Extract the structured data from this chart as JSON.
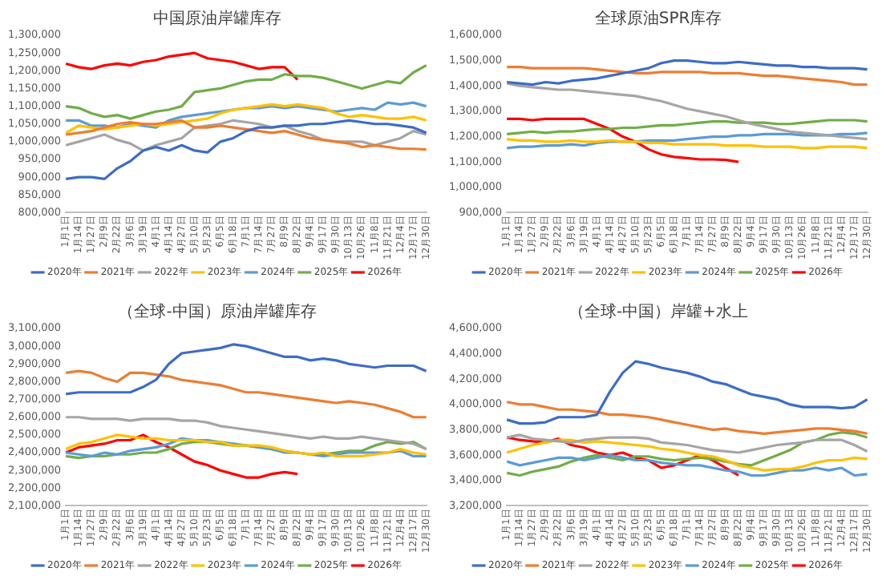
{
  "chart_data": [
    {
      "type": "line",
      "title": "中国原油岸罐库存",
      "categories": [
        "1月1日",
        "1月14日",
        "1月27日",
        "2月9日",
        "2月22日",
        "3月6日",
        "3月19日",
        "4月1日",
        "4月14日",
        "4月27日",
        "5月10日",
        "5月23日",
        "6月5日",
        "6月18日",
        "7月1日",
        "7月14日",
        "7月27日",
        "8月9日",
        "8月22日",
        "9月4日",
        "9月17日",
        "9月30日",
        "10月13日",
        "10月26日",
        "11月8日",
        "11月21日",
        "12月4日",
        "12月17日",
        "12月30日"
      ],
      "ylim": [
        800000,
        1300000
      ],
      "yticks": [
        {
          "value": 800000,
          "label": "800,000"
        },
        {
          "value": 850000,
          "label": "850,000"
        },
        {
          "value": 900000,
          "label": "900,000"
        },
        {
          "value": 950000,
          "label": "950,000"
        },
        {
          "value": 1000000,
          "label": "1,000,000"
        },
        {
          "value": 1050000,
          "label": "1,050,000"
        },
        {
          "value": 1100000,
          "label": "1,100,000"
        },
        {
          "value": 1150000,
          "label": "1,150,000"
        },
        {
          "value": 1200000,
          "label": "1,200,000"
        },
        {
          "value": 1250000,
          "label": "1,250,000"
        },
        {
          "value": 1300000,
          "label": "1,300,000"
        }
      ],
      "legend": "bottom",
      "marker": "none",
      "series": [
        {
          "name": "2020年",
          "color": "#3d6cc8",
          "values": [
            895000,
            900000,
            900000,
            895000,
            925000,
            945000,
            975000,
            985000,
            975000,
            990000,
            975000,
            970000,
            1000000,
            1010000,
            1030000,
            1040000,
            1040000,
            1045000,
            1045000,
            1050000,
            1050000,
            1055000,
            1060000,
            1055000,
            1050000,
            1050000,
            1045000,
            1040000,
            1025000
          ]
        },
        {
          "name": "2021年",
          "color": "#ed7d31",
          "values": [
            1020000,
            1025000,
            1030000,
            1040000,
            1050000,
            1055000,
            1050000,
            1050000,
            1055000,
            1060000,
            1040000,
            1040000,
            1045000,
            1040000,
            1035000,
            1030000,
            1025000,
            1030000,
            1020000,
            1010000,
            1005000,
            1000000,
            995000,
            985000,
            990000,
            985000,
            980000,
            980000,
            978000
          ]
        },
        {
          "name": "2022年",
          "color": "#a5a5a5",
          "values": [
            990000,
            1000000,
            1010000,
            1020000,
            1005000,
            995000,
            975000,
            990000,
            1000000,
            1010000,
            1040000,
            1045000,
            1050000,
            1060000,
            1055000,
            1050000,
            1040000,
            1045000,
            1030000,
            1020000,
            1005000,
            1000000,
            1000000,
            1000000,
            990000,
            1000000,
            1010000,
            1030000,
            1020000
          ]
        },
        {
          "name": "2023年",
          "color": "#ffc000",
          "values": [
            1025000,
            1045000,
            1040000,
            1035000,
            1040000,
            1045000,
            1050000,
            1045000,
            1050000,
            1055000,
            1060000,
            1065000,
            1080000,
            1090000,
            1095000,
            1100000,
            1105000,
            1100000,
            1105000,
            1100000,
            1095000,
            1080000,
            1070000,
            1075000,
            1070000,
            1065000,
            1065000,
            1070000,
            1060000
          ]
        },
        {
          "name": "2024年",
          "color": "#5b9bd5",
          "values": [
            1060000,
            1060000,
            1045000,
            1045000,
            1040000,
            1050000,
            1045000,
            1040000,
            1060000,
            1070000,
            1075000,
            1080000,
            1085000,
            1090000,
            1095000,
            1095000,
            1100000,
            1095000,
            1100000,
            1095000,
            1090000,
            1085000,
            1090000,
            1095000,
            1090000,
            1110000,
            1105000,
            1110000,
            1100000
          ]
        },
        {
          "name": "2025年",
          "color": "#70ad47",
          "values": [
            1100000,
            1095000,
            1080000,
            1070000,
            1075000,
            1065000,
            1075000,
            1085000,
            1090000,
            1100000,
            1140000,
            1145000,
            1150000,
            1160000,
            1170000,
            1175000,
            1175000,
            1190000,
            1185000,
            1185000,
            1180000,
            1170000,
            1160000,
            1150000,
            1160000,
            1170000,
            1165000,
            1195000,
            1215000
          ]
        },
        {
          "name": "2026年",
          "color": "#ff0000",
          "values": [
            1220000,
            1210000,
            1205000,
            1215000,
            1220000,
            1215000,
            1225000,
            1230000,
            1240000,
            1245000,
            1250000,
            1235000,
            1230000,
            1225000,
            1215000,
            1205000,
            1210000,
            1210000,
            1175000,
            null,
            null,
            null,
            null,
            null,
            null,
            null,
            null,
            null,
            null
          ]
        }
      ]
    },
    {
      "type": "line",
      "title": "全球原油SPR库存",
      "categories": [
        "1月1日",
        "1月14日",
        "1月27日",
        "2月9日",
        "2月22日",
        "3月6日",
        "3月19日",
        "4月1日",
        "4月14日",
        "4月27日",
        "5月10日",
        "5月23日",
        "6月5日",
        "6月18日",
        "7月1日",
        "7月14日",
        "7月27日",
        "8月9日",
        "8月22日",
        "9月4日",
        "9月17日",
        "9月30日",
        "10月13日",
        "10月26日",
        "11月8日",
        "11月21日",
        "12月4日",
        "12月17日",
        "12月30日"
      ],
      "ylim": [
        900000,
        1600000
      ],
      "yticks": [
        {
          "value": 900000,
          "label": "900,000"
        },
        {
          "value": 1000000,
          "label": "1,000,000"
        },
        {
          "value": 1100000,
          "label": "1,100,000"
        },
        {
          "value": 1200000,
          "label": "1,200,000"
        },
        {
          "value": 1300000,
          "label": "1,300,000"
        },
        {
          "value": 1400000,
          "label": "1,400,000"
        },
        {
          "value": 1500000,
          "label": "1,500,000"
        },
        {
          "value": 1600000,
          "label": "1,600,000"
        }
      ],
      "legend": "bottom",
      "marker": "none",
      "series": [
        {
          "name": "2020年",
          "color": "#3d6cc8",
          "values": [
            1415000,
            1410000,
            1405000,
            1415000,
            1410000,
            1420000,
            1425000,
            1430000,
            1440000,
            1450000,
            1460000,
            1470000,
            1490000,
            1500000,
            1500000,
            1495000,
            1490000,
            1490000,
            1495000,
            1490000,
            1485000,
            1480000,
            1480000,
            1475000,
            1475000,
            1470000,
            1470000,
            1470000,
            1465000
          ]
        },
        {
          "name": "2021年",
          "color": "#ed7d31",
          "values": [
            1475000,
            1475000,
            1470000,
            1470000,
            1470000,
            1470000,
            1470000,
            1465000,
            1460000,
            1455000,
            1450000,
            1450000,
            1455000,
            1455000,
            1455000,
            1455000,
            1450000,
            1450000,
            1450000,
            1445000,
            1440000,
            1440000,
            1435000,
            1430000,
            1425000,
            1420000,
            1415000,
            1405000,
            1405000
          ]
        },
        {
          "name": "2022年",
          "color": "#a5a5a5",
          "values": [
            1410000,
            1400000,
            1395000,
            1390000,
            1385000,
            1385000,
            1380000,
            1375000,
            1370000,
            1365000,
            1360000,
            1350000,
            1340000,
            1325000,
            1310000,
            1300000,
            1290000,
            1280000,
            1265000,
            1250000,
            1240000,
            1230000,
            1220000,
            1215000,
            1210000,
            1205000,
            1200000,
            1195000,
            1190000
          ]
        },
        {
          "name": "2023年",
          "color": "#ffc000",
          "values": [
            1190000,
            1185000,
            1185000,
            1180000,
            1180000,
            1185000,
            1180000,
            1180000,
            1185000,
            1180000,
            1180000,
            1175000,
            1175000,
            1170000,
            1170000,
            1170000,
            1170000,
            1165000,
            1165000,
            1165000,
            1160000,
            1160000,
            1160000,
            1155000,
            1155000,
            1160000,
            1160000,
            1160000,
            1155000
          ]
        },
        {
          "name": "2024年",
          "color": "#5b9bd5",
          "values": [
            1155000,
            1160000,
            1160000,
            1165000,
            1165000,
            1170000,
            1165000,
            1175000,
            1180000,
            1180000,
            1180000,
            1185000,
            1185000,
            1185000,
            1190000,
            1195000,
            1200000,
            1200000,
            1205000,
            1205000,
            1210000,
            1210000,
            1210000,
            1205000,
            1205000,
            1205000,
            1210000,
            1210000,
            1215000
          ]
        },
        {
          "name": "2025年",
          "color": "#70ad47",
          "values": [
            1210000,
            1215000,
            1220000,
            1215000,
            1220000,
            1220000,
            1225000,
            1230000,
            1230000,
            1235000,
            1235000,
            1240000,
            1245000,
            1245000,
            1250000,
            1255000,
            1260000,
            1260000,
            1255000,
            1255000,
            1255000,
            1250000,
            1250000,
            1255000,
            1260000,
            1265000,
            1265000,
            1265000,
            1260000
          ]
        },
        {
          "name": "2026年",
          "color": "#ff0000",
          "values": [
            1270000,
            1270000,
            1265000,
            1270000,
            1270000,
            1270000,
            1270000,
            1250000,
            1230000,
            1200000,
            1180000,
            1150000,
            1130000,
            1120000,
            1115000,
            1110000,
            1110000,
            1108000,
            1100000,
            null,
            null,
            null,
            null,
            null,
            null,
            null,
            null,
            null,
            null
          ]
        }
      ]
    },
    {
      "type": "line",
      "title": "（全球-中国）原油岸罐库存",
      "categories": [
        "1月1日",
        "1月14日",
        "1月27日",
        "2月9日",
        "2月22日",
        "3月6日",
        "3月19日",
        "4月1日",
        "4月14日",
        "4月27日",
        "5月10日",
        "5月23日",
        "6月5日",
        "6月18日",
        "7月1日",
        "7月14日",
        "7月27日",
        "8月9日",
        "8月22日",
        "9月4日",
        "9月17日",
        "9月30日",
        "10月13日",
        "10月26日",
        "11月8日",
        "11月21日",
        "12月4日",
        "12月17日",
        "12月30日"
      ],
      "ylim": [
        2100000,
        3100000
      ],
      "yticks": [
        {
          "value": 2100000,
          "label": "2,100,000"
        },
        {
          "value": 2200000,
          "label": "2,200,000"
        },
        {
          "value": 2300000,
          "label": "2,300,000"
        },
        {
          "value": 2400000,
          "label": "2,400,000"
        },
        {
          "value": 2500000,
          "label": "2,500,000"
        },
        {
          "value": 2600000,
          "label": "2,600,000"
        },
        {
          "value": 2700000,
          "label": "2,700,000"
        },
        {
          "value": 2800000,
          "label": "2,800,000"
        },
        {
          "value": 2900000,
          "label": "2,900,000"
        },
        {
          "value": 3000000,
          "label": "3,000,000"
        },
        {
          "value": 3100000,
          "label": "3,100,000"
        }
      ],
      "legend": "bottom",
      "marker": "none",
      "series": [
        {
          "name": "2020年",
          "color": "#3d6cc8",
          "values": [
            2730000,
            2740000,
            2740000,
            2740000,
            2740000,
            2740000,
            2770000,
            2810000,
            2900000,
            2960000,
            2970000,
            2980000,
            2990000,
            3010000,
            3000000,
            2980000,
            2960000,
            2940000,
            2940000,
            2920000,
            2930000,
            2920000,
            2900000,
            2890000,
            2880000,
            2890000,
            2890000,
            2890000,
            2860000
          ]
        },
        {
          "name": "2021年",
          "color": "#ed7d31",
          "values": [
            2850000,
            2860000,
            2850000,
            2820000,
            2800000,
            2850000,
            2850000,
            2840000,
            2830000,
            2810000,
            2800000,
            2790000,
            2780000,
            2760000,
            2740000,
            2740000,
            2730000,
            2720000,
            2710000,
            2700000,
            2690000,
            2680000,
            2690000,
            2680000,
            2670000,
            2650000,
            2630000,
            2600000,
            2600000
          ]
        },
        {
          "name": "2022年",
          "color": "#a5a5a5",
          "values": [
            2600000,
            2600000,
            2590000,
            2590000,
            2590000,
            2580000,
            2590000,
            2590000,
            2590000,
            2580000,
            2580000,
            2570000,
            2550000,
            2540000,
            2530000,
            2520000,
            2510000,
            2500000,
            2490000,
            2480000,
            2490000,
            2480000,
            2480000,
            2490000,
            2480000,
            2470000,
            2460000,
            2450000,
            2420000
          ]
        },
        {
          "name": "2023年",
          "color": "#ffc000",
          "values": [
            2420000,
            2450000,
            2460000,
            2480000,
            2500000,
            2490000,
            2480000,
            2480000,
            2470000,
            2470000,
            2470000,
            2460000,
            2460000,
            2440000,
            2440000,
            2440000,
            2430000,
            2410000,
            2400000,
            2390000,
            2400000,
            2380000,
            2380000,
            2380000,
            2390000,
            2400000,
            2420000,
            2400000,
            2390000
          ]
        },
        {
          "name": "2024年",
          "color": "#5b9bd5",
          "values": [
            2400000,
            2390000,
            2380000,
            2400000,
            2390000,
            2410000,
            2420000,
            2430000,
            2450000,
            2480000,
            2470000,
            2470000,
            2460000,
            2450000,
            2440000,
            2430000,
            2420000,
            2400000,
            2400000,
            2390000,
            2380000,
            2390000,
            2400000,
            2400000,
            2400000,
            2400000,
            2410000,
            2380000,
            2380000
          ]
        },
        {
          "name": "2025年",
          "color": "#70ad47",
          "values": [
            2380000,
            2370000,
            2380000,
            2380000,
            2390000,
            2390000,
            2400000,
            2400000,
            2420000,
            2450000,
            2460000,
            2460000,
            2450000,
            2440000,
            2440000,
            2430000,
            2420000,
            2410000,
            2400000,
            2390000,
            2390000,
            2400000,
            2410000,
            2410000,
            2440000,
            2460000,
            2450000,
            2460000,
            2420000
          ]
        },
        {
          "name": "2026年",
          "color": "#ff0000",
          "values": [
            2400000,
            2430000,
            2440000,
            2450000,
            2470000,
            2470000,
            2500000,
            2460000,
            2430000,
            2390000,
            2350000,
            2330000,
            2300000,
            2280000,
            2260000,
            2260000,
            2280000,
            2290000,
            2280000,
            null,
            null,
            null,
            null,
            null,
            null,
            null,
            null,
            null,
            null
          ]
        }
      ]
    },
    {
      "type": "line",
      "title": "（全球-中国）岸罐+水上",
      "categories": [
        "1月1日",
        "1月14日",
        "1月27日",
        "2月9日",
        "2月22日",
        "3月6日",
        "3月19日",
        "4月1日",
        "4月14日",
        "4月27日",
        "5月10日",
        "5月23日",
        "6月5日",
        "6月18日",
        "7月1日",
        "7月14日",
        "7月27日",
        "8月9日",
        "8月22日",
        "9月4日",
        "9月17日",
        "9月30日",
        "10月13日",
        "10月26日",
        "11月8日",
        "11月21日",
        "12月4日",
        "12月17日",
        "12月30日"
      ],
      "ylim": [
        3200000,
        4600000
      ],
      "yticks": [
        {
          "value": 3200000,
          "label": "3,200,000"
        },
        {
          "value": 3400000,
          "label": "3,400,000"
        },
        {
          "value": 3600000,
          "label": "3,600,000"
        },
        {
          "value": 3800000,
          "label": "3,800,000"
        },
        {
          "value": 4000000,
          "label": "4,000,000"
        },
        {
          "value": 4200000,
          "label": "4,200,000"
        },
        {
          "value": 4400000,
          "label": "4,400,000"
        },
        {
          "value": 4600000,
          "label": "4,600,000"
        }
      ],
      "legend": "bottom",
      "marker": "none",
      "series": [
        {
          "name": "2020年",
          "color": "#3d6cc8",
          "values": [
            3880000,
            3850000,
            3850000,
            3860000,
            3900000,
            3900000,
            3900000,
            3920000,
            4100000,
            4250000,
            4340000,
            4320000,
            4290000,
            4270000,
            4250000,
            4220000,
            4180000,
            4160000,
            4120000,
            4080000,
            4060000,
            4040000,
            4000000,
            3980000,
            3980000,
            3980000,
            3970000,
            3980000,
            4040000
          ]
        },
        {
          "name": "2021年",
          "color": "#ed7d31",
          "values": [
            4020000,
            4000000,
            4000000,
            3980000,
            3960000,
            3960000,
            3950000,
            3940000,
            3920000,
            3920000,
            3910000,
            3900000,
            3880000,
            3860000,
            3840000,
            3820000,
            3800000,
            3810000,
            3790000,
            3780000,
            3770000,
            3780000,
            3790000,
            3800000,
            3810000,
            3810000,
            3800000,
            3790000,
            3770000
          ]
        },
        {
          "name": "2022年",
          "color": "#a5a5a5",
          "values": [
            3740000,
            3760000,
            3730000,
            3720000,
            3710000,
            3700000,
            3720000,
            3730000,
            3740000,
            3740000,
            3740000,
            3730000,
            3700000,
            3690000,
            3680000,
            3660000,
            3640000,
            3630000,
            3620000,
            3640000,
            3660000,
            3680000,
            3690000,
            3700000,
            3720000,
            3720000,
            3720000,
            3680000,
            3630000
          ]
        },
        {
          "name": "2023年",
          "color": "#ffc000",
          "values": [
            3620000,
            3650000,
            3680000,
            3700000,
            3720000,
            3720000,
            3700000,
            3710000,
            3700000,
            3690000,
            3680000,
            3670000,
            3650000,
            3640000,
            3620000,
            3600000,
            3590000,
            3560000,
            3520000,
            3500000,
            3480000,
            3490000,
            3490000,
            3510000,
            3540000,
            3560000,
            3560000,
            3580000,
            3570000
          ]
        },
        {
          "name": "2024年",
          "color": "#5b9bd5",
          "values": [
            3550000,
            3520000,
            3540000,
            3560000,
            3580000,
            3580000,
            3560000,
            3580000,
            3600000,
            3580000,
            3560000,
            3560000,
            3540000,
            3530000,
            3520000,
            3520000,
            3500000,
            3480000,
            3470000,
            3440000,
            3440000,
            3460000,
            3480000,
            3480000,
            3500000,
            3480000,
            3500000,
            3440000,
            3450000
          ]
        },
        {
          "name": "2025年",
          "color": "#70ad47",
          "values": [
            3460000,
            3440000,
            3470000,
            3490000,
            3510000,
            3550000,
            3580000,
            3600000,
            3580000,
            3560000,
            3590000,
            3590000,
            3570000,
            3560000,
            3570000,
            3580000,
            3570000,
            3550000,
            3530000,
            3520000,
            3560000,
            3600000,
            3640000,
            3700000,
            3720000,
            3760000,
            3780000,
            3770000,
            3740000
          ]
        },
        {
          "name": "2026年",
          "color": "#ff0000",
          "values": [
            3740000,
            3720000,
            3710000,
            3700000,
            3730000,
            3680000,
            3660000,
            3620000,
            3600000,
            3620000,
            3580000,
            3560000,
            3500000,
            3520000,
            3560000,
            3600000,
            3560000,
            3500000,
            3440000,
            null,
            null,
            null,
            null,
            null,
            null,
            null,
            null,
            null,
            null
          ]
        }
      ]
    }
  ]
}
